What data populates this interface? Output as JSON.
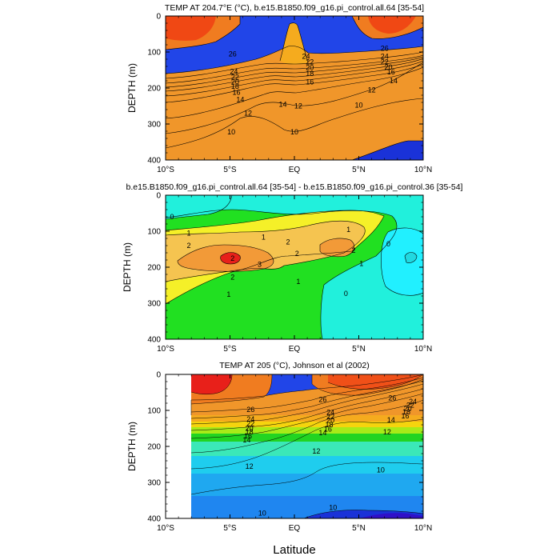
{
  "chart_data": [
    {
      "type": "contour",
      "title": "TEMP AT 204.7°E (°C), b.e15.B1850.f09_g16.pi_control.all.64 [35-54]",
      "ylabel": "DEPTH (m)",
      "xlabel": "",
      "x_ticks": [
        "10°S",
        "5°S",
        "EQ",
        "5°N",
        "10°N"
      ],
      "y_ticks": [
        "0",
        "100",
        "200",
        "300",
        "400"
      ],
      "xlim": [
        -10,
        10
      ],
      "ylim": [
        0,
        400
      ],
      "contour_labels": [
        {
          "text": "26",
          "lat": -4.8,
          "depth": 105
        },
        {
          "text": "24",
          "lat": 0.9,
          "depth": 112
        },
        {
          "text": "26",
          "lat": 7.0,
          "depth": 90
        },
        {
          "text": "24",
          "lat": 7.0,
          "depth": 112
        },
        {
          "text": "22",
          "lat": 7.0,
          "depth": 128
        },
        {
          "text": "20",
          "lat": 7.3,
          "depth": 142
        },
        {
          "text": "16",
          "lat": 7.5,
          "depth": 155
        },
        {
          "text": "14",
          "lat": 7.7,
          "depth": 180
        },
        {
          "text": "24",
          "lat": -4.7,
          "depth": 154
        },
        {
          "text": "22",
          "lat": -4.6,
          "depth": 170
        },
        {
          "text": "20",
          "lat": -4.6,
          "depth": 183
        },
        {
          "text": "18",
          "lat": -4.6,
          "depth": 195
        },
        {
          "text": "16",
          "lat": -4.5,
          "depth": 212
        },
        {
          "text": "14",
          "lat": -4.2,
          "depth": 232
        },
        {
          "text": "22",
          "lat": 1.2,
          "depth": 128
        },
        {
          "text": "20",
          "lat": 1.2,
          "depth": 143
        },
        {
          "text": "18",
          "lat": 1.2,
          "depth": 160
        },
        {
          "text": "16",
          "lat": 1.2,
          "depth": 183
        },
        {
          "text": "12",
          "lat": 6.0,
          "depth": 205
        },
        {
          "text": "14",
          "lat": -0.9,
          "depth": 245
        },
        {
          "text": "12",
          "lat": 0.3,
          "depth": 250
        },
        {
          "text": "12",
          "lat": -3.6,
          "depth": 270
        },
        {
          "text": "10",
          "lat": 5.0,
          "depth": 248
        },
        {
          "text": "10",
          "lat": -4.9,
          "depth": 322
        },
        {
          "text": "10",
          "lat": 0.0,
          "depth": 322
        }
      ]
    },
    {
      "type": "contour",
      "title": "b.e15.B1850.f09_g16.pi_control.all.64 [35-54] - b.e15.B1850.f09_g16.pi_control.36 [35-54]",
      "ylabel": "DEPTH (m)",
      "xlabel": "",
      "x_ticks": [
        "10°S",
        "5°S",
        "EQ",
        "5°N",
        "10°N"
      ],
      "y_ticks": [
        "0",
        "100",
        "200",
        "300",
        "400"
      ],
      "xlim": [
        -10,
        10
      ],
      "ylim": [
        0,
        400
      ],
      "contour_labels": [
        {
          "text": "0",
          "lat": -9.5,
          "depth": 60
        },
        {
          "text": "1",
          "lat": -8.2,
          "depth": 105
        },
        {
          "text": "1",
          "lat": -2.4,
          "depth": 117
        },
        {
          "text": "2",
          "lat": -8.2,
          "depth": 140
        },
        {
          "text": "2",
          "lat": -0.5,
          "depth": 130
        },
        {
          "text": "1",
          "lat": 4.2,
          "depth": 95
        },
        {
          "text": "2",
          "lat": 4.6,
          "depth": 153
        },
        {
          "text": "0",
          "lat": 7.3,
          "depth": 135
        },
        {
          "text": "2",
          "lat": -4.8,
          "depth": 175
        },
        {
          "text": "3",
          "lat": -2.7,
          "depth": 192
        },
        {
          "text": "2",
          "lat": 0.2,
          "depth": 162
        },
        {
          "text": "2",
          "lat": -4.8,
          "depth": 228
        },
        {
          "text": "1",
          "lat": 5.2,
          "depth": 190
        },
        {
          "text": "1",
          "lat": 0.3,
          "depth": 240
        },
        {
          "text": "1",
          "lat": -5.1,
          "depth": 275
        },
        {
          "text": "0",
          "lat": 4.0,
          "depth": 273
        }
      ]
    },
    {
      "type": "contour",
      "title": "TEMP AT 205 (°C), Johnson et al (2002)",
      "ylabel": "DEPTH (m)",
      "xlabel": "Latitude",
      "x_ticks": [
        "10°S",
        "5°S",
        "EQ",
        "5°N",
        "10°N"
      ],
      "y_ticks": [
        "0",
        "100",
        "200",
        "300",
        "400"
      ],
      "xlim": [
        -10,
        10
      ],
      "ylim": [
        0,
        400
      ],
      "data_coverage_lat": [
        -8.0,
        10.0
      ],
      "contour_labels": [
        {
          "text": "26",
          "lat": -3.4,
          "depth": 98
        },
        {
          "text": "24",
          "lat": -3.4,
          "depth": 124
        },
        {
          "text": "22",
          "lat": -3.4,
          "depth": 137
        },
        {
          "text": "20",
          "lat": -3.5,
          "depth": 150
        },
        {
          "text": "18",
          "lat": -3.5,
          "depth": 160
        },
        {
          "text": "16",
          "lat": -3.6,
          "depth": 171
        },
        {
          "text": "14",
          "lat": -3.7,
          "depth": 182
        },
        {
          "text": "26",
          "lat": 2.2,
          "depth": 70
        },
        {
          "text": "24",
          "lat": 2.8,
          "depth": 105
        },
        {
          "text": "22",
          "lat": 2.8,
          "depth": 118
        },
        {
          "text": "20",
          "lat": 2.8,
          "depth": 128
        },
        {
          "text": "18",
          "lat": 2.7,
          "depth": 140
        },
        {
          "text": "16",
          "lat": 2.6,
          "depth": 152
        },
        {
          "text": "14",
          "lat": 2.2,
          "depth": 162
        },
        {
          "text": "26",
          "lat": 7.6,
          "depth": 66
        },
        {
          "text": "24",
          "lat": 9.2,
          "depth": 75
        },
        {
          "text": "22",
          "lat": 9.0,
          "depth": 86
        },
        {
          "text": "20",
          "lat": 8.8,
          "depth": 96
        },
        {
          "text": "18",
          "lat": 8.7,
          "depth": 104
        },
        {
          "text": "16",
          "lat": 8.6,
          "depth": 115
        },
        {
          "text": "14",
          "lat": 7.5,
          "depth": 127
        },
        {
          "text": "12",
          "lat": 7.2,
          "depth": 160
        },
        {
          "text": "12",
          "lat": 1.7,
          "depth": 213
        },
        {
          "text": "12",
          "lat": -3.5,
          "depth": 255
        },
        {
          "text": "10",
          "lat": 6.7,
          "depth": 265
        },
        {
          "text": "10",
          "lat": 3.0,
          "depth": 370
        },
        {
          "text": "10",
          "lat": -2.5,
          "depth": 385
        }
      ]
    }
  ]
}
